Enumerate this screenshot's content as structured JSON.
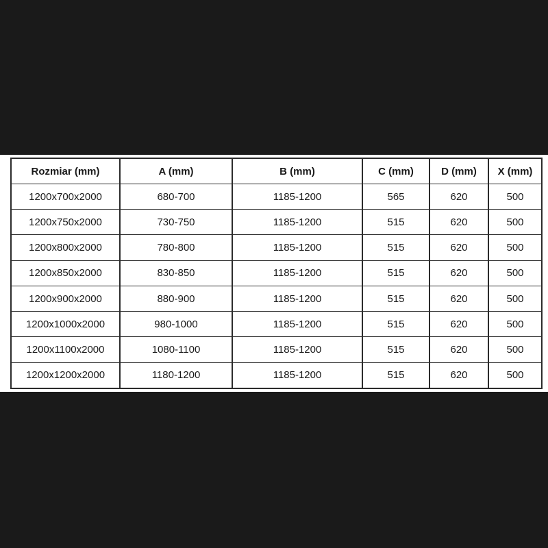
{
  "colors": {
    "page_background": "#1a1a1a",
    "panel_background": "#ffffff",
    "grid_line": "#2b2b2b",
    "text": "#1a1a1a"
  },
  "table": {
    "columns": [
      "Rozmiar (mm)",
      "A (mm)",
      "B (mm)",
      "C (mm)",
      "D (mm)",
      "X (mm)"
    ],
    "rows": [
      [
        "1200x700x2000",
        "680-700",
        "1185-1200",
        "565",
        "620",
        "500"
      ],
      [
        "1200x750x2000",
        "730-750",
        "1185-1200",
        "515",
        "620",
        "500"
      ],
      [
        "1200x800x2000",
        "780-800",
        "1185-1200",
        "515",
        "620",
        "500"
      ],
      [
        "1200x850x2000",
        "830-850",
        "1185-1200",
        "515",
        "620",
        "500"
      ],
      [
        "1200x900x2000",
        "880-900",
        "1185-1200",
        "515",
        "620",
        "500"
      ],
      [
        "1200x1000x2000",
        "980-1000",
        "1185-1200",
        "515",
        "620",
        "500"
      ],
      [
        "1200x1100x2000",
        "1080-1100",
        "1185-1200",
        "515",
        "620",
        "500"
      ],
      [
        "1200x1200x2000",
        "1180-1200",
        "1185-1200",
        "515",
        "620",
        "500"
      ]
    ]
  },
  "chart_data": {
    "type": "table",
    "title": "",
    "columns": [
      "Rozmiar (mm)",
      "A (mm)",
      "B (mm)",
      "C (mm)",
      "D (mm)",
      "X (mm)"
    ],
    "rows": [
      [
        "1200x700x2000",
        "680-700",
        "1185-1200",
        "565",
        "620",
        "500"
      ],
      [
        "1200x750x2000",
        "730-750",
        "1185-1200",
        "515",
        "620",
        "500"
      ],
      [
        "1200x800x2000",
        "780-800",
        "1185-1200",
        "515",
        "620",
        "500"
      ],
      [
        "1200x850x2000",
        "830-850",
        "1185-1200",
        "515",
        "620",
        "500"
      ],
      [
        "1200x900x2000",
        "880-900",
        "1185-1200",
        "515",
        "620",
        "500"
      ],
      [
        "1200x1000x2000",
        "980-1000",
        "1185-1200",
        "515",
        "620",
        "500"
      ],
      [
        "1200x1100x2000",
        "1080-1100",
        "1185-1200",
        "515",
        "620",
        "500"
      ],
      [
        "1200x1200x2000",
        "1180-1200",
        "1185-1200",
        "515",
        "620",
        "500"
      ]
    ],
    "layout_hints": {
      "panel": "white horizontal band on black background",
      "header_bold": true,
      "grid": "on"
    }
  }
}
